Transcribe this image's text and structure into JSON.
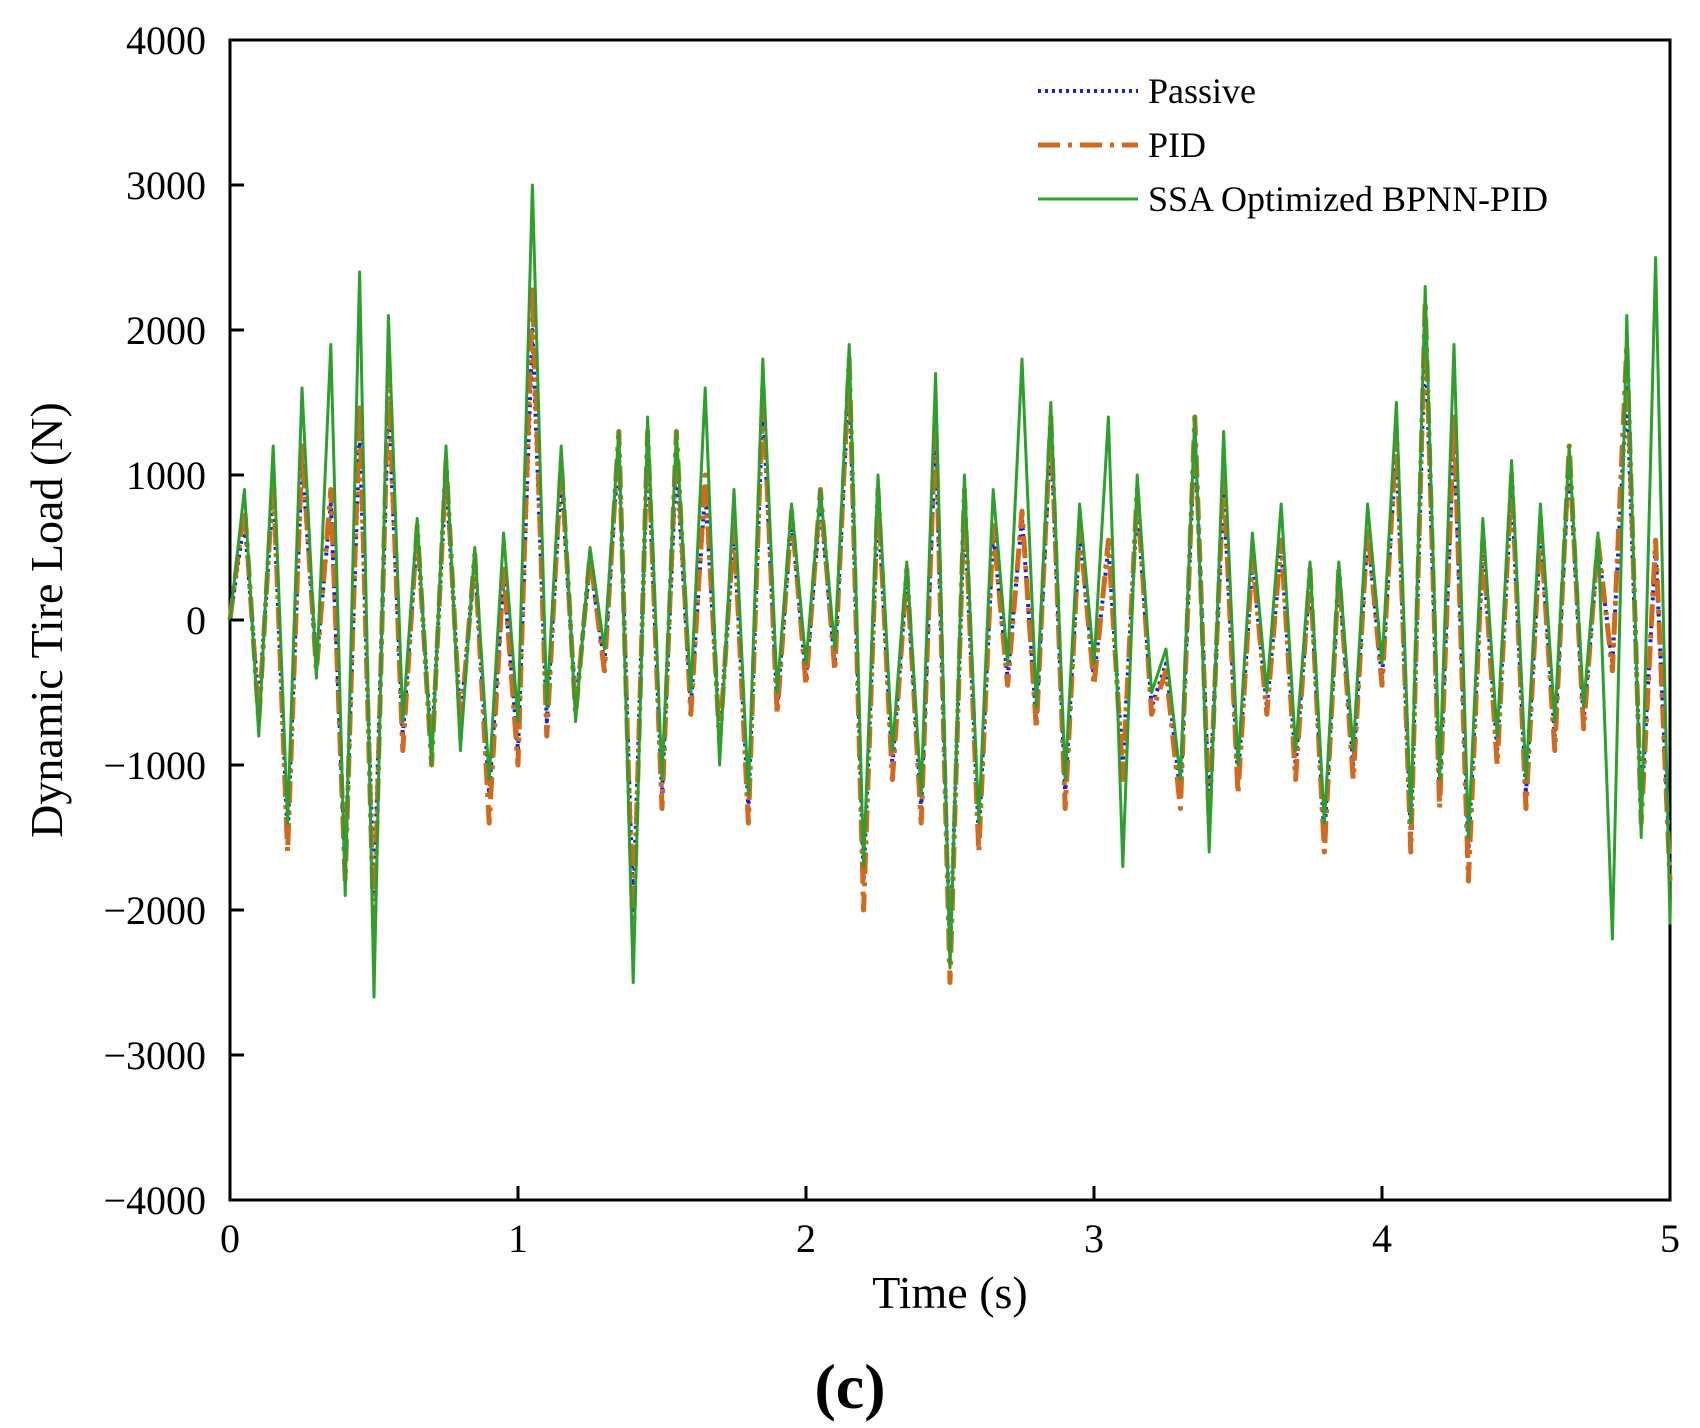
{
  "chart_data": {
    "type": "line",
    "title": "",
    "xlabel": "Time (s)",
    "ylabel": "Dynamic Tire Load (N)",
    "panel_label": "(c)",
    "xlim": [
      0,
      5
    ],
    "ylim": [
      -4000,
      4000
    ],
    "xticks": [
      0,
      1,
      2,
      3,
      4,
      5
    ],
    "xtick_labels": [
      "0",
      "1",
      "2",
      "3",
      "4",
      "5"
    ],
    "yticks": [
      4000,
      3000,
      2000,
      1000,
      0,
      -1000,
      -2000,
      -3000,
      -4000
    ],
    "ytick_labels": [
      "4000",
      "3000",
      "2000",
      "1000",
      "0",
      "−1000",
      "−2000",
      "−3000",
      "−4000"
    ],
    "grid": false,
    "legend_position": "top-right",
    "x": [
      0.0,
      0.05,
      0.1,
      0.15,
      0.2,
      0.25,
      0.3,
      0.35,
      0.4,
      0.45,
      0.5,
      0.55,
      0.6,
      0.65,
      0.7,
      0.75,
      0.8,
      0.85,
      0.9,
      0.95,
      1.0,
      1.05,
      1.1,
      1.15,
      1.2,
      1.25,
      1.3,
      1.35,
      1.4,
      1.45,
      1.5,
      1.55,
      1.6,
      1.65,
      1.7,
      1.75,
      1.8,
      1.85,
      1.9,
      1.95,
      2.0,
      2.05,
      2.1,
      2.15,
      2.2,
      2.25,
      2.3,
      2.35,
      2.4,
      2.45,
      2.5,
      2.55,
      2.6,
      2.65,
      2.7,
      2.75,
      2.8,
      2.85,
      2.9,
      2.95,
      3.0,
      3.05,
      3.1,
      3.15,
      3.2,
      3.25,
      3.3,
      3.35,
      3.4,
      3.45,
      3.5,
      3.55,
      3.6,
      3.65,
      3.7,
      3.75,
      3.8,
      3.85,
      3.9,
      3.95,
      4.0,
      4.05,
      4.1,
      4.15,
      4.2,
      4.25,
      4.3,
      4.35,
      4.4,
      4.45,
      4.5,
      4.55,
      4.6,
      4.65,
      4.7,
      4.75,
      4.8,
      4.85,
      4.9,
      4.95,
      5.0
    ],
    "series": [
      {
        "name": "Passive",
        "color": "#1f1fd6",
        "dash": "dotted",
        "values": [
          0,
          700,
          -600,
          900,
          -1500,
          1100,
          -300,
          800,
          -1700,
          1300,
          -1900,
          1500,
          -800,
          600,
          -900,
          1000,
          -700,
          400,
          -1200,
          300,
          -900,
          2000,
          -700,
          1000,
          -600,
          400,
          -300,
          1200,
          -2000,
          1200,
          -1200,
          1100,
          -600,
          900,
          -800,
          600,
          -1300,
          1500,
          -600,
          700,
          -400,
          800,
          -300,
          1700,
          -1800,
          800,
          -1000,
          300,
          -1300,
          1300,
          -2300,
          800,
          -1500,
          600,
          -400,
          700,
          -700,
          1300,
          -1200,
          600,
          -400,
          500,
          -1000,
          800,
          -600,
          -300,
          -1200,
          1300,
          -1300,
          900,
          -1100,
          400,
          -600,
          500,
          -1000,
          300,
          -1500,
          300,
          -1000,
          600,
          -400,
          1200,
          -1500,
          2000,
          -1200,
          1300,
          -1600,
          500,
          -900,
          900,
          -1200,
          600,
          -800,
          1100,
          -700,
          500,
          -300,
          1600,
          -1300,
          500,
          -1700
        ]
      },
      {
        "name": "PID",
        "color": "#d2691e",
        "dash": "dashdot",
        "values": [
          0,
          800,
          -700,
          1000,
          -1600,
          1200,
          -350,
          900,
          -1800,
          1500,
          -2200,
          1700,
          -900,
          650,
          -1000,
          1100,
          -750,
          450,
          -1400,
          350,
          -1000,
          2300,
          -800,
          1100,
          -650,
          450,
          -350,
          1300,
          -2200,
          1300,
          -1300,
          1300,
          -650,
          1000,
          -850,
          650,
          -1400,
          1600,
          -650,
          750,
          -450,
          900,
          -350,
          1800,
          -2000,
          900,
          -1100,
          350,
          -1400,
          1400,
          -2500,
          900,
          -1600,
          650,
          -450,
          750,
          -750,
          1400,
          -1300,
          650,
          -450,
          550,
          -1100,
          900,
          -650,
          -350,
          -1300,
          1400,
          -1400,
          1000,
          -1200,
          450,
          -650,
          550,
          -1100,
          350,
          -1600,
          350,
          -1100,
          650,
          -450,
          1300,
          -1600,
          2200,
          -1300,
          1400,
          -1800,
          550,
          -1000,
          1000,
          -1300,
          650,
          -900,
          1200,
          -750,
          550,
          -350,
          1900,
          -1400,
          550,
          -1800
        ]
      },
      {
        "name": "SSA Optimized BPNN-PID",
        "color": "#2ca02c",
        "dash": "solid",
        "values": [
          0,
          900,
          -800,
          1200,
          -1400,
          1600,
          -400,
          1900,
          -1900,
          2400,
          -2600,
          2100,
          -700,
          700,
          -1000,
          1200,
          -900,
          500,
          -1100,
          600,
          -700,
          3000,
          -600,
          1200,
          -700,
          500,
          -200,
          1300,
          -2500,
          1400,
          -1100,
          1300,
          -500,
          1600,
          -1000,
          900,
          -1200,
          1800,
          -500,
          800,
          -300,
          900,
          -200,
          1900,
          -1700,
          1000,
          -900,
          400,
          -1200,
          1700,
          -2400,
          1000,
          -1400,
          900,
          -300,
          1800,
          -600,
          1500,
          -1100,
          800,
          -300,
          1400,
          -1700,
          1000,
          -500,
          -200,
          -1100,
          1400,
          -1600,
          1300,
          -1000,
          600,
          -500,
          800,
          -900,
          400,
          -1400,
          400,
          -900,
          800,
          -300,
          1500,
          -1400,
          2300,
          -1100,
          1900,
          -1500,
          700,
          -800,
          1100,
          -1100,
          800,
          -700,
          1200,
          -600,
          600,
          -2200,
          2100,
          -1500,
          2500,
          -2100
        ]
      }
    ]
  }
}
